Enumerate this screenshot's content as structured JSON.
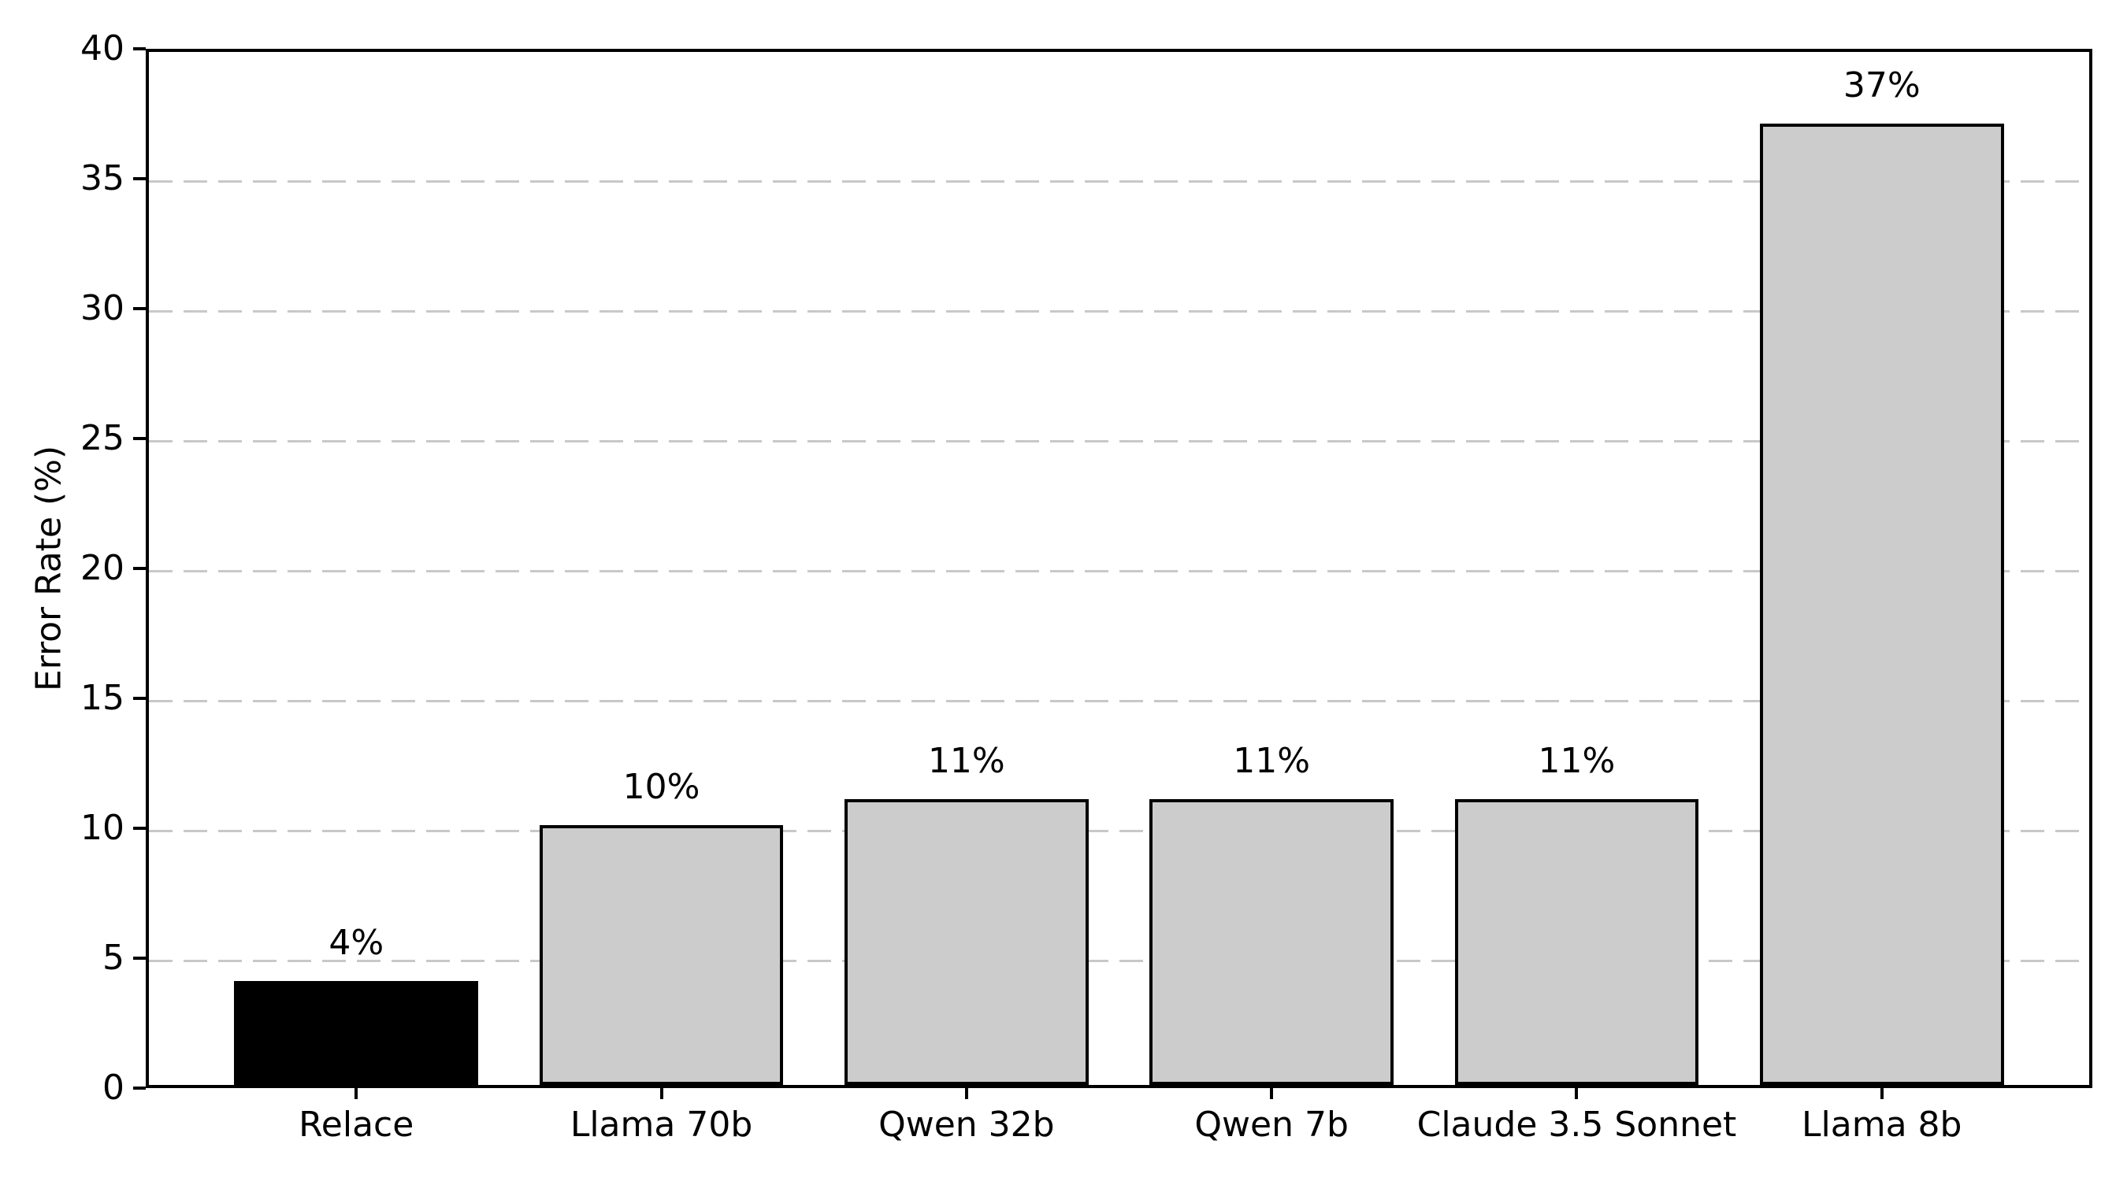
{
  "chart_data": {
    "type": "bar",
    "categories": [
      "Relace",
      "Llama 70b",
      "Qwen 32b",
      "Qwen 7b",
      "Claude 3.5 Sonnet",
      "Llama 8b"
    ],
    "values": [
      4,
      10,
      11,
      11,
      11,
      37
    ],
    "value_labels": [
      "4%",
      "10%",
      "11%",
      "11%",
      "11%",
      "37%"
    ],
    "bar_colors": [
      "#000000",
      "#cccccc",
      "#cccccc",
      "#cccccc",
      "#cccccc",
      "#cccccc"
    ],
    "edge_color": "#000000",
    "ylabel": "Error Rate (%)",
    "xlabel": "",
    "ylim": [
      0,
      40
    ],
    "yticks": [
      0,
      5,
      10,
      15,
      20,
      25,
      30,
      35,
      40
    ],
    "grid": "horizontal-dashed",
    "grid_color": "#c8c8c8",
    "legend": "none",
    "background": "#ffffff"
  }
}
